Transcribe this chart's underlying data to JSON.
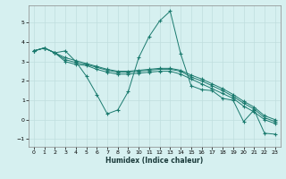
{
  "title": "",
  "xlabel": "Humidex (Indice chaleur)",
  "ylabel": "",
  "background_color": "#d6f0f0",
  "line_color": "#1a7a6e",
  "xlim": [
    -0.5,
    23.5
  ],
  "ylim": [
    -1.4,
    5.9
  ],
  "xticks": [
    0,
    1,
    2,
    3,
    4,
    5,
    6,
    7,
    8,
    9,
    10,
    11,
    12,
    13,
    14,
    15,
    16,
    17,
    18,
    19,
    20,
    21,
    22,
    23
  ],
  "yticks": [
    -1,
    0,
    1,
    2,
    3,
    4,
    5
  ],
  "series": [
    [
      3.55,
      3.7,
      3.45,
      3.55,
      3.0,
      2.25,
      1.3,
      0.3,
      0.5,
      1.45,
      3.2,
      4.3,
      5.1,
      5.6,
      3.4,
      1.75,
      1.55,
      1.5,
      1.1,
      1.0,
      -0.1,
      0.5,
      -0.7,
      -0.75
    ],
    [
      3.55,
      3.7,
      3.45,
      3.0,
      2.85,
      2.8,
      2.6,
      2.45,
      2.35,
      2.35,
      2.4,
      2.45,
      2.5,
      2.5,
      2.35,
      2.1,
      1.85,
      1.6,
      1.35,
      1.1,
      0.7,
      0.4,
      0.0,
      -0.2
    ],
    [
      3.55,
      3.7,
      3.45,
      3.1,
      2.95,
      2.85,
      2.7,
      2.55,
      2.45,
      2.45,
      2.5,
      2.55,
      2.6,
      2.6,
      2.5,
      2.2,
      2.0,
      1.75,
      1.5,
      1.2,
      0.85,
      0.55,
      0.1,
      -0.1
    ],
    [
      3.55,
      3.7,
      3.45,
      3.2,
      3.05,
      2.9,
      2.75,
      2.6,
      2.5,
      2.5,
      2.55,
      2.6,
      2.65,
      2.65,
      2.55,
      2.3,
      2.1,
      1.85,
      1.6,
      1.3,
      0.95,
      0.65,
      0.2,
      0.0
    ]
  ]
}
